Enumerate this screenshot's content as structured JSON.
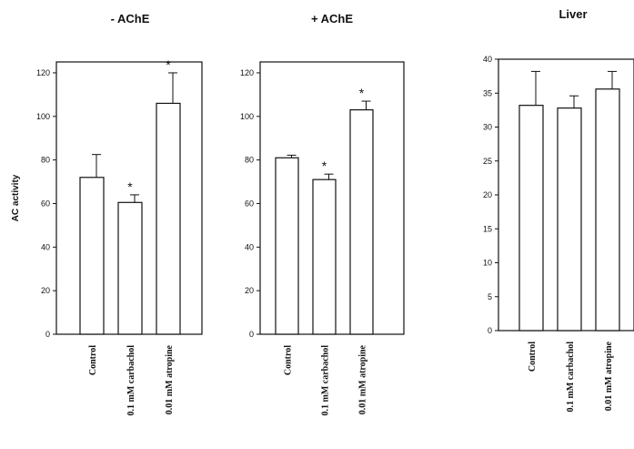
{
  "chart_data": [
    {
      "type": "bar",
      "title": "- AChE",
      "ylabel": "AC activity",
      "categories": [
        "Control",
        "0.1 mM carbachol",
        "0.01 mM atropine"
      ],
      "values": [
        72,
        60.5,
        106
      ],
      "errors": [
        10.5,
        3.5,
        14
      ],
      "significance": [
        "",
        "*",
        "*"
      ],
      "ylim": [
        0,
        125
      ],
      "yticks": [
        0,
        20,
        40,
        60,
        80,
        100,
        120
      ]
    },
    {
      "type": "bar",
      "title": "+ AChE",
      "ylabel": "",
      "categories": [
        "Control",
        "0.1 mM carbachol",
        "0.01 mM atropine"
      ],
      "values": [
        81,
        71,
        103
      ],
      "errors": [
        1.2,
        2.5,
        4
      ],
      "significance": [
        "",
        "*",
        "*"
      ],
      "ylim": [
        0,
        125
      ],
      "yticks": [
        0,
        20,
        40,
        60,
        80,
        100,
        120
      ]
    },
    {
      "type": "bar",
      "title": "Liver",
      "ylabel": "",
      "categories": [
        "Control",
        "0.1 mM carbachol",
        "0.01 mM atropine"
      ],
      "values": [
        33.2,
        32.8,
        35.6
      ],
      "errors": [
        5,
        1.8,
        2.6
      ],
      "significance": [
        "",
        "",
        ""
      ],
      "ylim": [
        0,
        40
      ],
      "yticks": [
        0,
        5,
        10,
        15,
        20,
        25,
        30,
        35,
        40
      ]
    }
  ]
}
